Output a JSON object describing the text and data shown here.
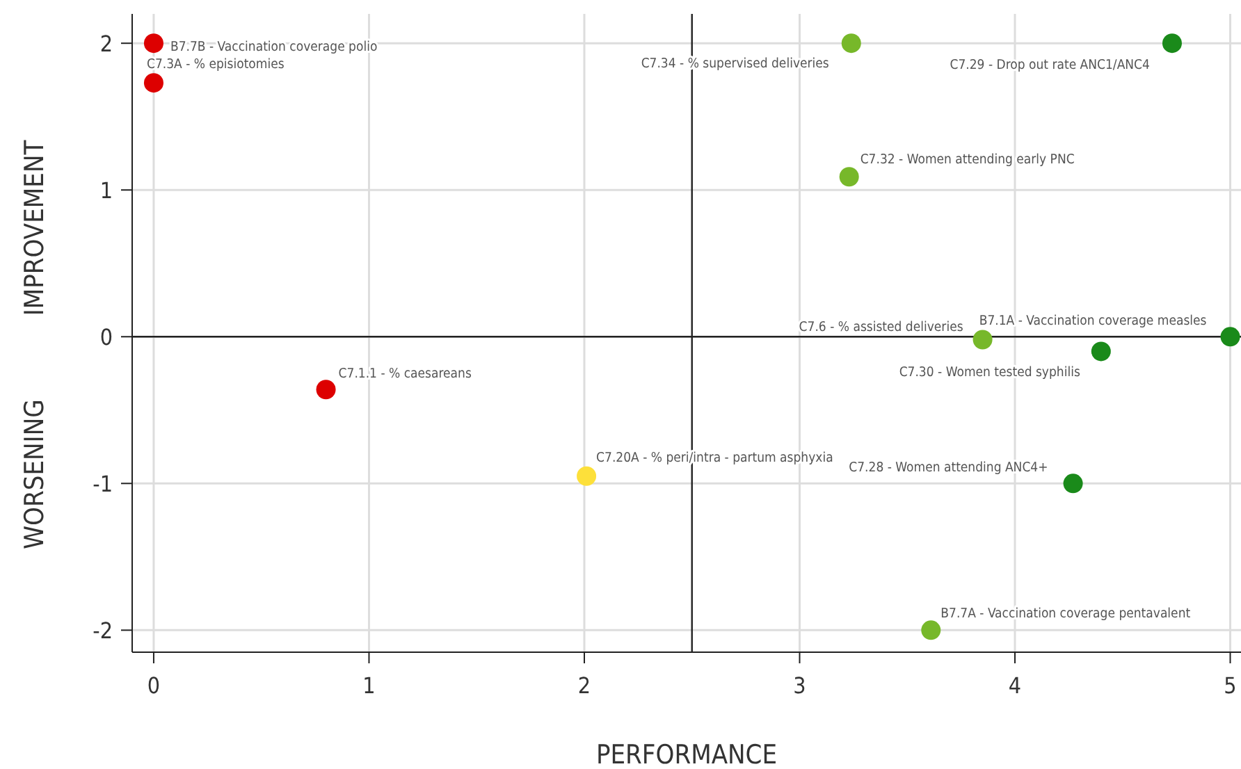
{
  "chart_data": {
    "type": "scatter",
    "xlabel": "PERFORMANCE",
    "ylabel": "IMPROVEMENT",
    "xlim": [
      -0.1,
      5.05
    ],
    "ylim": [
      -2.15,
      2.2
    ],
    "xticks": [
      0,
      1,
      2,
      3,
      4,
      5
    ],
    "yticks": [
      -2,
      -1,
      0,
      1,
      2
    ],
    "grid": true,
    "marker": "circle",
    "ref_lines": [
      {
        "axis": "x",
        "value": 2.5,
        "color": "#222222"
      },
      {
        "axis": "y",
        "value": 0,
        "color": "#222222"
      }
    ],
    "series": [
      {
        "color": "#dd0000",
        "x": [
          0,
          0,
          0.8
        ],
        "values": [
          2,
          1.73,
          -0.36
        ]
      },
      {
        "color": "#fde03a",
        "x": [
          2.01
        ],
        "values": [
          -0.95
        ]
      },
      {
        "color": "#77b82a",
        "x": [
          3.24,
          3.23,
          3.85,
          3.61
        ],
        "values": [
          2,
          1.09,
          -0.02,
          -2
        ]
      },
      {
        "color": "#1a8a1a",
        "x": [
          4.73,
          5,
          4.4,
          4.27
        ],
        "values": [
          2,
          0,
          -0.1,
          -1
        ]
      }
    ],
    "annotations": [
      "WORSENING",
      {
        "text": "B7.7B - Vaccination coverage polio",
        "x": 0,
        "y": 2
      },
      {
        "text": "C7.3A - % episiotomies",
        "x": 0,
        "y": 1.73
      },
      {
        "text": "C7.1.1 - % caesareans",
        "x": 0.8,
        "y": -0.36
      },
      {
        "text": "C7.20A - % peri/intra - partum asphyxia",
        "x": 2.01,
        "y": -0.95
      },
      {
        "text": "C7.34 - % supervised deliveries",
        "x": 3.24,
        "y": 2
      },
      {
        "text": "C7.32 - Women attending early PNC",
        "x": 3.23,
        "y": 1.09
      },
      {
        "text": "C7.6 - % assisted deliveries",
        "x": 3.85,
        "y": -0.02
      },
      {
        "text": "B7.7A - Vaccination coverage pentavalent",
        "x": 3.61,
        "y": -2
      },
      {
        "text": "C7.29 - Drop out rate ANC1/ANC4",
        "x": 4.73,
        "y": 2
      },
      {
        "text": "B7.1A - Vaccination coverage measles",
        "x": 5,
        "y": 0
      },
      {
        "text": "C7.30 - Women tested syphilis",
        "x": 4.4,
        "y": -0.1
      },
      {
        "text": "C7.28 - Women attending ANC4+",
        "x": 4.27,
        "y": -1
      }
    ]
  }
}
